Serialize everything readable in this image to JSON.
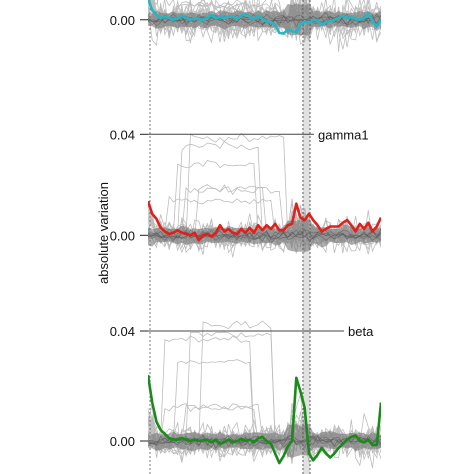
{
  "chart_data": {
    "type": "line",
    "ylabel": "absolute variation",
    "vertical_reference_lines": "dotted",
    "background_trace_color": "#bdbdbd",
    "band_color": "#6e6e6e",
    "panels": [
      {
        "label": "",
        "ylim": [
          -0.028,
          0.006
        ],
        "yticks": [
          {
            "value": 0.0,
            "label": "0.00"
          }
        ],
        "highlight": {
          "color": "#26b5c4",
          "values": [
            0.0065,
            0.003,
            0.0015,
            0.0005,
            0.001,
            0.0005,
            0.0,
            0.0005,
            0.0012,
            0.0005,
            0.0,
            0.0005,
            0.0002,
            0.0,
            0.0005,
            0.0015,
            0.0005,
            0.0008,
            0.0006,
            0.001,
            0.001,
            0.0002,
            0.0012,
            0.0018,
            0.0008,
            0.0002,
            0.0012,
            0.0003,
            -0.0005,
            -0.0008,
            -0.0015,
            -0.004,
            -0.0042,
            -0.003,
            -0.0035,
            -0.0038,
            -0.0015,
            -0.0005,
            -0.001,
            0.0,
            -0.0002,
            -0.0015,
            -0.0008,
            -0.0005,
            0.0,
            0.0005,
            0.0012,
            0.0005,
            0.0008,
            0.0002,
            0.0,
            0.0005,
            0.0018,
            -0.0005,
            -0.002,
            0.0
          ]
        }
      },
      {
        "label": "gamma1",
        "ylim": [
          -0.028,
          0.052
        ],
        "yticks": [
          {
            "value": 0.04,
            "label": "0.04"
          },
          {
            "value": 0.0,
            "label": "0.00"
          }
        ],
        "highlight": {
          "color": "#e0201b",
          "values": [
            0.0135,
            0.0085,
            0.0065,
            0.003,
            0.0015,
            0.0005,
            0.001,
            0.002,
            0.001,
            0.0005,
            0.0,
            0.001,
            -0.002,
            0.0,
            0.0005,
            -0.0005,
            0.001,
            0.004,
            0.0015,
            0.0025,
            0.001,
            0.0005,
            0.0025,
            0.001,
            0.003,
            0.001,
            0.004,
            0.002,
            0.004,
            0.0025,
            0.0045,
            0.002,
            0.002,
            0.004,
            0.0045,
            0.0125,
            0.007,
            0.006,
            0.0085,
            0.006,
            0.004,
            0.0015,
            0.0025,
            0.0035,
            0.0035,
            0.0035,
            0.005,
            0.006,
            0.004,
            0.0015,
            0.0045,
            0.0025,
            0.005,
            0.0015,
            0.0035,
            0.007
          ]
        }
      },
      {
        "label": "beta",
        "ylim": [
          -0.012,
          0.052
        ],
        "yticks": [
          {
            "value": 0.04,
            "label": "0.04"
          },
          {
            "value": 0.0,
            "label": "0.00"
          }
        ],
        "highlight": {
          "color": "#1a8a1a",
          "values": [
            0.024,
            0.014,
            0.007,
            0.004,
            0.0025,
            0.001,
            0.0005,
            0.0005,
            0.001,
            0.0005,
            0.0,
            0.0005,
            0.0,
            0.0002,
            0.0005,
            -0.0005,
            0.0005,
            -0.001,
            -0.0005,
            0.0005,
            -0.0005,
            0.0,
            0.0008,
            0.0,
            0.0005,
            -0.0005,
            0.001,
            0.0015,
            0.0,
            -0.001,
            -0.0045,
            -0.008,
            -0.0055,
            -0.002,
            0.0,
            0.023,
            0.018,
            0.012,
            -0.0045,
            -0.007,
            -0.005,
            -0.0025,
            -0.0045,
            -0.006,
            -0.0045,
            -0.0025,
            -0.001,
            0.0005,
            0.0015,
            0.002,
            0.0,
            -0.0005,
            0.0005,
            -0.0015,
            -0.0015,
            0.014
          ]
        }
      }
    ]
  }
}
